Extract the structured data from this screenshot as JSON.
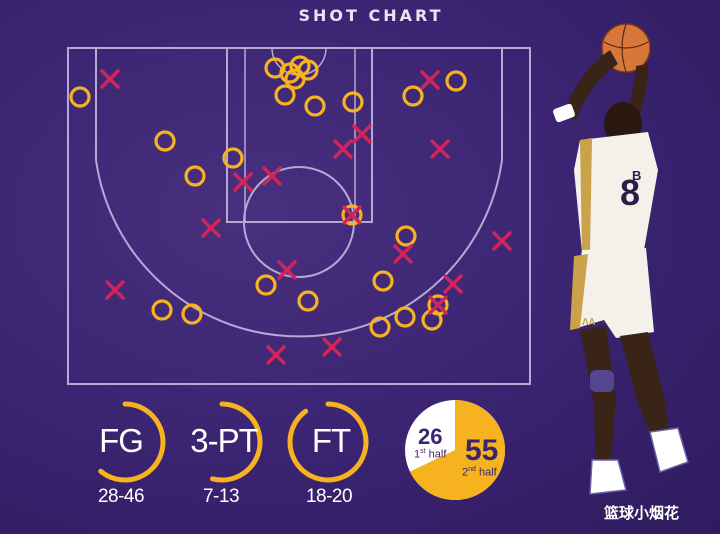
{
  "title": "SHOT CHART",
  "colors": {
    "made": "#f7b21f",
    "missed": "#d0245a",
    "court_line": "#b7a9d6",
    "arc": "#f7b21f",
    "white": "#ffffff"
  },
  "chart_data": {
    "type": "scatter",
    "title": "SHOT CHART",
    "series": [
      {
        "name": "made",
        "marker": "circle",
        "points": [
          [
            80,
            97
          ],
          [
            275,
            68
          ],
          [
            290,
            73
          ],
          [
            300,
            66
          ],
          [
            308,
            70
          ],
          [
            295,
            79
          ],
          [
            285,
            95
          ],
          [
            315,
            106
          ],
          [
            353,
            102
          ],
          [
            413,
            96
          ],
          [
            456,
            81
          ],
          [
            165,
            141
          ],
          [
            233,
            158
          ],
          [
            195,
            176
          ],
          [
            352,
            215
          ],
          [
            406,
            236
          ],
          [
            266,
            285
          ],
          [
            308,
            301
          ],
          [
            383,
            281
          ],
          [
            162,
            310
          ],
          [
            192,
            314
          ],
          [
            380,
            327
          ],
          [
            405,
            317
          ],
          [
            432,
            320
          ],
          [
            438,
            305
          ]
        ]
      },
      {
        "name": "missed",
        "marker": "x",
        "points": [
          [
            110,
            79
          ],
          [
            430,
            80
          ],
          [
            362,
            134
          ],
          [
            343,
            149
          ],
          [
            440,
            149
          ],
          [
            243,
            182
          ],
          [
            272,
            176
          ],
          [
            211,
            228
          ],
          [
            403,
            254
          ],
          [
            502,
            241
          ],
          [
            115,
            290
          ],
          [
            287,
            270
          ],
          [
            453,
            284
          ],
          [
            276,
            355
          ],
          [
            332,
            347
          ],
          [
            352,
            215
          ],
          [
            438,
            305
          ]
        ]
      }
    ]
  },
  "stats": [
    {
      "label": "FG",
      "value": "28-46",
      "fraction": 0.61
    },
    {
      "label": "3-PT",
      "value": "7-13",
      "fraction": 0.54
    },
    {
      "label": "FT",
      "value": "18-20",
      "fraction": 0.9
    }
  ],
  "halves": {
    "first": {
      "points": "26",
      "label_sup": "st",
      "label_pre": "1",
      "label_post": "half"
    },
    "second": {
      "points": "55",
      "label_sup": "nd",
      "label_pre": "2",
      "label_post": "half"
    },
    "second_fraction": 0.679
  },
  "jersey": {
    "number": "8",
    "name_fragment": "B",
    "brand_mark": "ΛΛ"
  },
  "watermark": "篮球小烟花"
}
